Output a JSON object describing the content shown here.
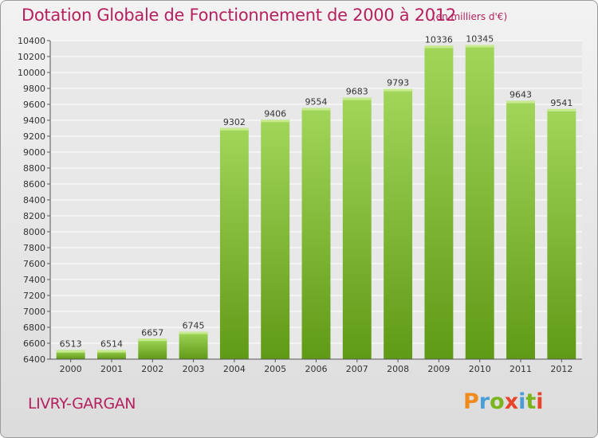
{
  "header": {
    "title": "Dotation Globale de Fonctionnement de 2000 à 2012",
    "unit": "(en milliers d'€)"
  },
  "footer": {
    "city": "LIVRY-GARGAN",
    "logo": "Proxiti"
  },
  "colors": {
    "title": "#b5215f",
    "bar_top": "#a2d65a",
    "bar_bottom": "#5f9a16",
    "logo_letters": [
      "#f08a1c",
      "#4a9ed8",
      "#7ab51d",
      "#e8432b",
      "#4a9ed8",
      "#7ab51d",
      "#e8432b"
    ]
  },
  "chart_data": {
    "type": "bar",
    "categories": [
      "2000",
      "2001",
      "2002",
      "2003",
      "2004",
      "2005",
      "2006",
      "2007",
      "2008",
      "2009",
      "2010",
      "2011",
      "2012"
    ],
    "values": [
      6513,
      6514,
      6657,
      6745,
      9302,
      9406,
      9554,
      9683,
      9793,
      10336,
      10345,
      9643,
      9541
    ],
    "title": "Dotation Globale de Fonctionnement de 2000 à 2012",
    "subtitle": "(en milliers d'€)",
    "xlabel": "",
    "ylabel": "",
    "ylim": [
      6400,
      10400
    ],
    "yticks": [
      6400,
      6600,
      6800,
      7000,
      7200,
      7400,
      7600,
      7800,
      8000,
      8200,
      8400,
      8600,
      8800,
      9000,
      9200,
      9400,
      9600,
      9800,
      10000,
      10200,
      10400
    ],
    "grid": true,
    "legend": "none"
  }
}
